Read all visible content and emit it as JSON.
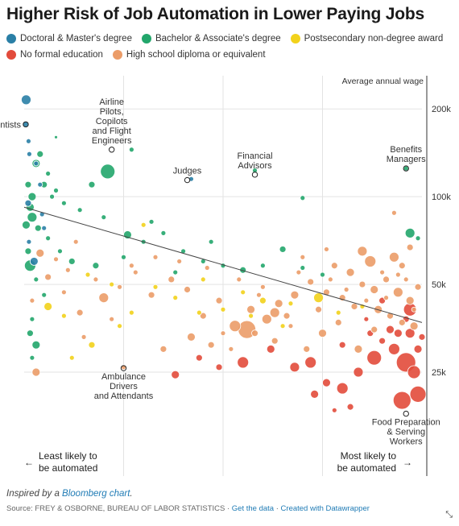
{
  "title": "Higher Risk of Job Automation in Lower Paying Jobs",
  "legend": [
    {
      "label": "Doctoral & Master's degree",
      "color": "#2a7fa6"
    },
    {
      "label": "Bachelor & Associate's degree",
      "color": "#22a66b"
    },
    {
      "label": "Postsecondary non-degree award",
      "color": "#f2d21b"
    },
    {
      "label": "No formal education",
      "color": "#e24b3b"
    },
    {
      "label": "High school diploma or equivalent",
      "color": "#eb9c68"
    }
  ],
  "footer": {
    "inspired_prefix": "Inspired by a ",
    "inspired_link": "Bloomberg chart",
    "inspired_suffix": ".",
    "source": "Source: FREY & OSBORNE, BUREAU OF LABOR STATISTICS",
    "sep": "·",
    "get_data": "Get the data",
    "created_with": "Created with Datawrapper"
  },
  "chart_data": {
    "type": "scatter",
    "xlabel_left": "Least likely to be automated",
    "xlabel_right": "Most likely to be automated",
    "arrow_left": "←",
    "arrow_right": "→",
    "x_range": [
      0,
      1
    ],
    "y_scale": "log",
    "ylim": [
      11000,
      260000
    ],
    "y_title": "Average annual wage",
    "y_ticks": [
      {
        "value": 200000,
        "label": "200k"
      },
      {
        "value": 100000,
        "label": "100k"
      },
      {
        "value": 50000,
        "label": "50k"
      },
      {
        "value": 25000,
        "label": "25k"
      }
    ],
    "x_grid": [
      0.25,
      0.5,
      0.75
    ],
    "trendline": [
      [
        0,
        92000
      ],
      [
        1,
        37000
      ]
    ],
    "annotations": [
      {
        "text": "Dentists",
        "x": 0.004,
        "y": 177000,
        "anchor": "end"
      },
      {
        "text": "Airline Pilots, Copilots and Flight Engineers",
        "x": 0.22,
        "y": 145000,
        "anchor": "middle"
      },
      {
        "text": "Judges",
        "x": 0.41,
        "y": 114000,
        "anchor": "middle"
      },
      {
        "text": "Financial Advisors",
        "x": 0.58,
        "y": 119000,
        "anchor": "middle"
      },
      {
        "text": "Benefits Managers",
        "x": 0.96,
        "y": 125000,
        "anchor": "middle"
      },
      {
        "text": "Ambulance Drivers and Attendants",
        "x": 0.25,
        "y": 25800,
        "anchor": "middle"
      },
      {
        "text": "Food Preparation & Serving Workers",
        "x": 0.96,
        "y": 18000,
        "anchor": "middle"
      }
    ],
    "series": [
      {
        "name": "Doctoral & Master's degree",
        "color": "#2a7fa6",
        "points": [
          [
            0.004,
            177000,
            4
          ],
          [
            0.005,
            215000,
            6
          ],
          [
            0.011,
            155000,
            3
          ],
          [
            0.013,
            140000,
            3
          ],
          [
            0.03,
            130000,
            3
          ],
          [
            0.42,
            115000,
            3
          ],
          [
            0.01,
            95000,
            4
          ],
          [
            0.045,
            87000,
            3
          ],
          [
            0.025,
            60000,
            5
          ],
          [
            0.04,
            110000,
            3
          ],
          [
            0.012,
            70000,
            3
          ],
          [
            0.05,
            78000,
            3
          ]
        ]
      },
      {
        "name": "Bachelor & Associate's degree",
        "color": "#22a66b",
        "points": [
          [
            0.08,
            160000,
            2
          ],
          [
            0.27,
            145000,
            3
          ],
          [
            0.58,
            123000,
            3
          ],
          [
            0.96,
            125000,
            3
          ],
          [
            0.21,
            122000,
            9
          ],
          [
            0.03,
            130000,
            5
          ],
          [
            0.05,
            110000,
            4
          ],
          [
            0.07,
            100000,
            3
          ],
          [
            0.1,
            95000,
            3
          ],
          [
            0.14,
            90000,
            3
          ],
          [
            0.2,
            85000,
            3
          ],
          [
            0.015,
            92000,
            5
          ],
          [
            0.02,
            85000,
            6
          ],
          [
            0.035,
            78000,
            4
          ],
          [
            0.06,
            72000,
            3
          ],
          [
            0.09,
            65000,
            3
          ],
          [
            0.12,
            60000,
            4
          ],
          [
            0.3,
            70000,
            3
          ],
          [
            0.35,
            75000,
            3
          ],
          [
            0.4,
            65000,
            3
          ],
          [
            0.45,
            60000,
            3
          ],
          [
            0.5,
            58000,
            3
          ],
          [
            0.55,
            56000,
            4
          ],
          [
            0.6,
            58000,
            3
          ],
          [
            0.65,
            66000,
            4
          ],
          [
            0.7,
            99000,
            3
          ],
          [
            0.97,
            75000,
            6
          ],
          [
            0.99,
            72000,
            3
          ],
          [
            0.01,
            65000,
            4
          ],
          [
            0.015,
            58000,
            7
          ],
          [
            0.03,
            52000,
            3
          ],
          [
            0.05,
            46000,
            3
          ],
          [
            0.02,
            38000,
            3
          ],
          [
            0.015,
            34000,
            4
          ],
          [
            0.03,
            31000,
            5
          ],
          [
            0.02,
            28000,
            3
          ],
          [
            0.26,
            74000,
            5
          ],
          [
            0.18,
            58000,
            4
          ],
          [
            0.25,
            62000,
            3
          ],
          [
            0.38,
            55000,
            3
          ],
          [
            0.7,
            57000,
            3
          ],
          [
            0.75,
            54000,
            3
          ],
          [
            0.01,
            110000,
            4
          ],
          [
            0.04,
            140000,
            4
          ],
          [
            0.06,
            120000,
            3
          ],
          [
            0.17,
            110000,
            4
          ],
          [
            0.005,
            80000,
            5
          ],
          [
            0.02,
            100000,
            5
          ],
          [
            0.08,
            105000,
            3
          ],
          [
            0.32,
            82000,
            3
          ],
          [
            0.47,
            70000,
            3
          ]
        ]
      },
      {
        "name": "Postsecondary non-degree award",
        "color": "#f2d21b",
        "points": [
          [
            0.06,
            42000,
            5
          ],
          [
            0.1,
            39000,
            3
          ],
          [
            0.16,
            54000,
            3
          ],
          [
            0.22,
            50000,
            3
          ],
          [
            0.27,
            40000,
            3
          ],
          [
            0.33,
            49000,
            3
          ],
          [
            0.38,
            45000,
            3
          ],
          [
            0.44,
            40000,
            3
          ],
          [
            0.5,
            41000,
            3
          ],
          [
            0.55,
            47000,
            3
          ],
          [
            0.6,
            44000,
            4
          ],
          [
            0.67,
            43000,
            3
          ],
          [
            0.74,
            45000,
            6
          ],
          [
            0.79,
            40000,
            3
          ],
          [
            0.85,
            42000,
            3
          ],
          [
            0.17,
            31000,
            4
          ],
          [
            0.12,
            28000,
            3
          ],
          [
            0.3,
            80000,
            3
          ],
          [
            0.45,
            52000,
            3
          ],
          [
            0.57,
            39000,
            3
          ],
          [
            0.24,
            36000,
            3
          ],
          [
            0.65,
            36000,
            3
          ]
        ]
      },
      {
        "name": "No formal education",
        "color": "#e24b3b",
        "points": [
          [
            0.95,
            20000,
            11
          ],
          [
            0.97,
            41000,
            8
          ],
          [
            0.93,
            30000,
            7
          ],
          [
            0.96,
            27000,
            12
          ],
          [
            0.99,
            21000,
            10
          ],
          [
            0.98,
            25000,
            8
          ],
          [
            0.88,
            28000,
            9
          ],
          [
            0.84,
            25000,
            6
          ],
          [
            0.8,
            22000,
            7
          ],
          [
            0.76,
            23000,
            5
          ],
          [
            0.72,
            27000,
            7
          ],
          [
            0.68,
            26000,
            6
          ],
          [
            0.62,
            30000,
            5
          ],
          [
            0.55,
            27000,
            7
          ],
          [
            0.49,
            26000,
            4
          ],
          [
            0.44,
            28000,
            4
          ],
          [
            0.38,
            24500,
            5
          ],
          [
            0.92,
            35000,
            5
          ],
          [
            0.9,
            32000,
            4
          ],
          [
            0.87,
            34000,
            4
          ],
          [
            0.94,
            34000,
            5
          ],
          [
            0.97,
            34000,
            6
          ],
          [
            0.99,
            30000,
            5
          ],
          [
            1.0,
            33000,
            4
          ],
          [
            0.96,
            38000,
            4
          ],
          [
            0.9,
            44000,
            4
          ],
          [
            0.86,
            38000,
            3
          ],
          [
            0.8,
            31000,
            4
          ],
          [
            0.82,
            19000,
            4
          ],
          [
            0.78,
            18500,
            3
          ],
          [
            0.73,
            21000,
            5
          ]
        ]
      },
      {
        "name": "High school diploma or equivalent",
        "color": "#eb9c68",
        "points": [
          [
            0.03,
            25000,
            5
          ],
          [
            0.25,
            26000,
            3
          ],
          [
            0.87,
            60000,
            7
          ],
          [
            0.93,
            62000,
            6
          ],
          [
            0.78,
            58000,
            4
          ],
          [
            0.82,
            55000,
            5
          ],
          [
            0.85,
            50000,
            4
          ],
          [
            0.88,
            48000,
            5
          ],
          [
            0.91,
            52000,
            4
          ],
          [
            0.94,
            47000,
            6
          ],
          [
            0.97,
            44000,
            5
          ],
          [
            0.99,
            49000,
            4
          ],
          [
            0.8,
            45000,
            4
          ],
          [
            0.83,
            42000,
            4
          ],
          [
            0.89,
            41000,
            5
          ],
          [
            0.92,
            39000,
            4
          ],
          [
            0.95,
            37000,
            4
          ],
          [
            0.98,
            36000,
            5
          ],
          [
            0.76,
            47000,
            4
          ],
          [
            0.72,
            51000,
            4
          ],
          [
            0.68,
            46000,
            5
          ],
          [
            0.64,
            43000,
            5
          ],
          [
            0.61,
            38000,
            6
          ],
          [
            0.57,
            41000,
            5
          ],
          [
            0.53,
            36000,
            7
          ],
          [
            0.49,
            44000,
            4
          ],
          [
            0.45,
            39000,
            4
          ],
          [
            0.41,
            48000,
            4
          ],
          [
            0.37,
            52000,
            4
          ],
          [
            0.32,
            46000,
            4
          ],
          [
            0.28,
            55000,
            3
          ],
          [
            0.2,
            45000,
            6
          ],
          [
            0.14,
            40000,
            4
          ],
          [
            0.1,
            47000,
            3
          ],
          [
            0.06,
            53000,
            4
          ],
          [
            0.04,
            64000,
            5
          ],
          [
            0.13,
            70000,
            3
          ],
          [
            0.15,
            33000,
            3
          ],
          [
            0.22,
            38000,
            3
          ],
          [
            0.35,
            30000,
            4
          ],
          [
            0.42,
            33000,
            5
          ],
          [
            0.47,
            31000,
            4
          ],
          [
            0.52,
            30000,
            3
          ],
          [
            0.58,
            34000,
            4
          ],
          [
            0.63,
            32000,
            4
          ],
          [
            0.67,
            36000,
            3
          ],
          [
            0.71,
            30000,
            4
          ],
          [
            0.75,
            34000,
            5
          ],
          [
            0.79,
            37000,
            4
          ],
          [
            0.84,
            30000,
            5
          ],
          [
            0.9,
            55000,
            3
          ],
          [
            0.95,
            58000,
            4
          ],
          [
            0.85,
            65000,
            6
          ],
          [
            0.76,
            66000,
            3
          ],
          [
            0.7,
            62000,
            3
          ],
          [
            0.93,
            88000,
            3
          ],
          [
            0.97,
            67000,
            4
          ],
          [
            0.86,
            44000,
            3
          ],
          [
            0.81,
            48000,
            3
          ],
          [
            0.74,
            41000,
            4
          ],
          [
            0.66,
            39000,
            4
          ],
          [
            0.6,
            49000,
            3
          ],
          [
            0.54,
            52000,
            3
          ],
          [
            0.46,
            57000,
            3
          ],
          [
            0.39,
            60000,
            3
          ],
          [
            0.33,
            62000,
            3
          ],
          [
            0.27,
            58000,
            3
          ],
          [
            0.24,
            49000,
            3
          ],
          [
            0.18,
            52000,
            3
          ],
          [
            0.11,
            56000,
            3
          ],
          [
            0.08,
            61000,
            3
          ],
          [
            0.02,
            44000,
            3
          ],
          [
            0.56,
            35000,
            11
          ],
          [
            0.63,
            40000,
            6
          ],
          [
            0.88,
            35000,
            4
          ],
          [
            0.91,
            45000,
            3
          ],
          [
            0.77,
            52000,
            3
          ],
          [
            0.69,
            55000,
            3
          ],
          [
            0.59,
            46000,
            3
          ],
          [
            0.5,
            34000,
            3
          ],
          [
            0.98,
            41000,
            3
          ],
          [
            0.96,
            52000,
            3
          ],
          [
            0.94,
            54000,
            3
          ]
        ]
      }
    ]
  }
}
